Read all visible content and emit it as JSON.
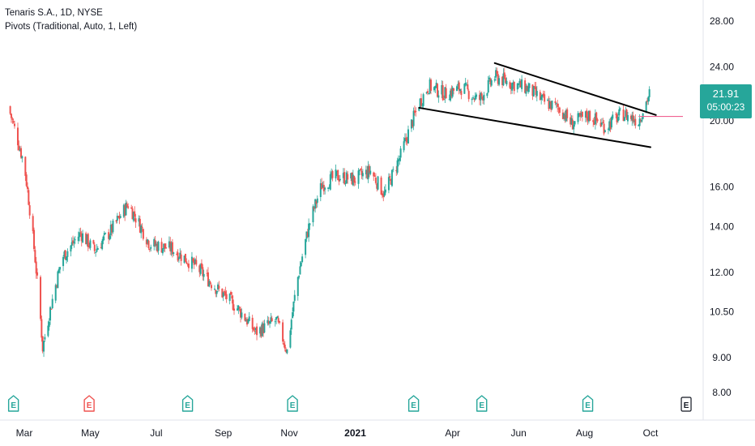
{
  "legend": {
    "symbol_line": "Tenaris S.A., 1D, NYSE",
    "indicator_line": "Pivots (Traditional, Auto, 1, Left)"
  },
  "price_badge": {
    "price": "21.91",
    "countdown": "05:00:23",
    "color": "#26a69a"
  },
  "colors": {
    "up": "#26a69a",
    "down": "#ef5350",
    "pivot": "#f06292",
    "trendline": "#000000",
    "earnings_up": "#26a69a",
    "earnings_down": "#ef5350",
    "earnings_future": "#131722"
  },
  "chart_data": {
    "type": "candlestick",
    "title": "Tenaris S.A., 1D, NYSE",
    "x_ticks": [
      "Mar",
      "May",
      "Jul",
      "Sep",
      "Nov",
      "2021",
      "Apr",
      "Jun",
      "Aug",
      "Oct"
    ],
    "y_ticks": [
      "28.00",
      "24.00",
      "20.00",
      "16.00",
      "14.00",
      "12.00",
      "10.50",
      "9.00",
      "8.00"
    ],
    "y_scale": "log",
    "ylim": [
      7.6,
      29.5
    ],
    "current_price": 21.91,
    "pivot_level": 20.3,
    "price_path": [
      {
        "date": "2020-02-15",
        "close": 21.0
      },
      {
        "date": "2020-03-01",
        "close": 17.2
      },
      {
        "date": "2020-03-18",
        "close": 9.3
      },
      {
        "date": "2020-04-05",
        "close": 12.6
      },
      {
        "date": "2020-04-22",
        "close": 13.7
      },
      {
        "date": "2020-05-05",
        "close": 12.9
      },
      {
        "date": "2020-05-20",
        "close": 13.8
      },
      {
        "date": "2020-06-05",
        "close": 15.1
      },
      {
        "date": "2020-06-25",
        "close": 13.2
      },
      {
        "date": "2020-07-15",
        "close": 13.0
      },
      {
        "date": "2020-08-05",
        "close": 12.3
      },
      {
        "date": "2020-08-25",
        "close": 11.4
      },
      {
        "date": "2020-09-15",
        "close": 10.6
      },
      {
        "date": "2020-10-01",
        "close": 9.8
      },
      {
        "date": "2020-10-20",
        "close": 10.2
      },
      {
        "date": "2020-10-30",
        "close": 9.2
      },
      {
        "date": "2020-11-09",
        "close": 11.8
      },
      {
        "date": "2020-11-20",
        "close": 14.2
      },
      {
        "date": "2020-12-01",
        "close": 16.1
      },
      {
        "date": "2020-12-15",
        "close": 16.6
      },
      {
        "date": "2020-12-31",
        "close": 16.4
      },
      {
        "date": "2021-01-15",
        "close": 16.9
      },
      {
        "date": "2021-01-28",
        "close": 15.6
      },
      {
        "date": "2021-02-12",
        "close": 17.8
      },
      {
        "date": "2021-03-01",
        "close": 21.2
      },
      {
        "date": "2021-03-10",
        "close": 22.5
      },
      {
        "date": "2021-03-25",
        "close": 21.9
      },
      {
        "date": "2021-04-10",
        "close": 22.4
      },
      {
        "date": "2021-04-25",
        "close": 21.4
      },
      {
        "date": "2021-05-10",
        "close": 23.2
      },
      {
        "date": "2021-05-25",
        "close": 22.7
      },
      {
        "date": "2021-06-10",
        "close": 22.3
      },
      {
        "date": "2021-06-25",
        "close": 21.3
      },
      {
        "date": "2021-07-10",
        "close": 20.8
      },
      {
        "date": "2021-07-20",
        "close": 19.8
      },
      {
        "date": "2021-08-05",
        "close": 20.4
      },
      {
        "date": "2021-08-20",
        "close": 19.6
      },
      {
        "date": "2021-09-05",
        "close": 20.5
      },
      {
        "date": "2021-09-20",
        "close": 20.0
      },
      {
        "date": "2021-09-30",
        "close": 21.9
      }
    ],
    "trendlines": [
      {
        "name": "upper",
        "start": {
          "date": "2021-05-10",
          "price": 24.3
        },
        "end": {
          "date": "2021-10-06",
          "price": 20.4
        }
      },
      {
        "name": "lower",
        "start": {
          "date": "2021-03-01",
          "price": 20.9
        },
        "end": {
          "date": "2021-10-01",
          "price": 18.3
        }
      }
    ],
    "earnings_markers": [
      {
        "date": "2020-02-20",
        "type": "beat"
      },
      {
        "date": "2020-04-30",
        "type": "miss"
      },
      {
        "date": "2020-07-30",
        "type": "beat"
      },
      {
        "date": "2020-11-04",
        "type": "beat"
      },
      {
        "date": "2021-02-24",
        "type": "beat"
      },
      {
        "date": "2021-04-28",
        "type": "beat"
      },
      {
        "date": "2021-08-04",
        "type": "beat"
      },
      {
        "date": "2021-11-03",
        "type": "upcoming"
      }
    ]
  }
}
